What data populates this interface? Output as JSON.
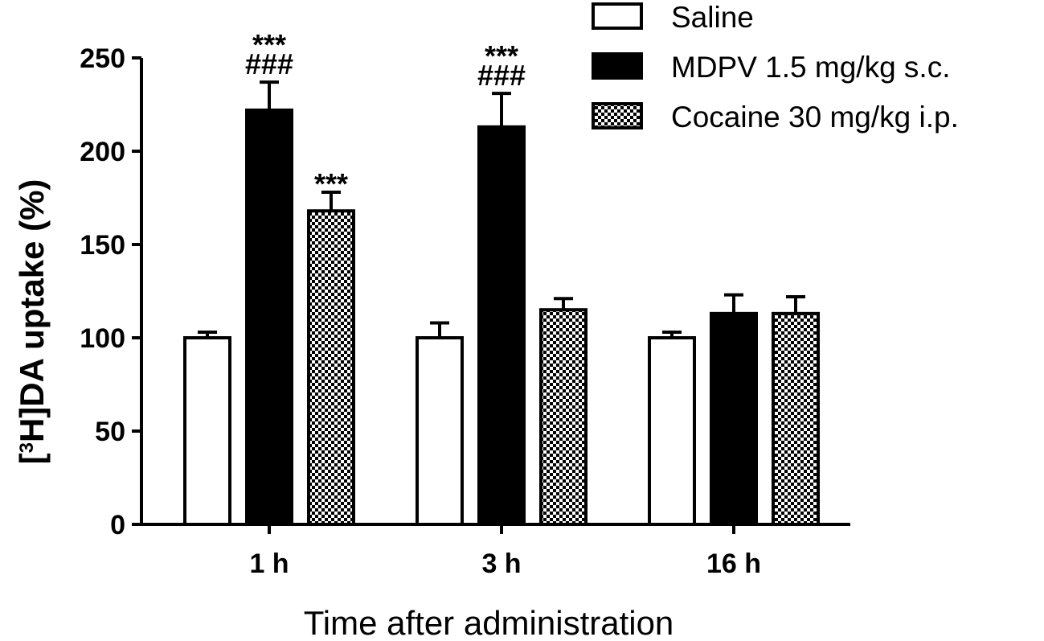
{
  "chart_data": {
    "type": "bar",
    "categories": [
      "1 h",
      "3 h",
      "16 h"
    ],
    "ylabel_prefix": "[",
    "ylabel_sup": "3",
    "ylabel_rest": "H]DA uptake (%)",
    "xlabel": "Time after administration",
    "ylim": [
      0,
      250
    ],
    "yticks": [
      0,
      50,
      100,
      150,
      200,
      250
    ],
    "grid": false,
    "legend_position": "top-right",
    "series": [
      {
        "name": "Saline",
        "fill": "white",
        "values": [
          100,
          100,
          100
        ],
        "errors": [
          3,
          8,
          3
        ]
      },
      {
        "name": "MDPV 1.5 mg/kg s.c.",
        "fill": "black",
        "values": [
          222,
          213,
          113
        ],
        "errors": [
          15,
          18,
          10
        ]
      },
      {
        "name": "Cocaine 30 mg/kg i.p.",
        "fill": "checker",
        "values": [
          168,
          115,
          113
        ],
        "errors": [
          10,
          6,
          9
        ]
      }
    ],
    "annotations": [
      {
        "category": 0,
        "series": 1,
        "lines": [
          "***",
          "###"
        ]
      },
      {
        "category": 0,
        "series": 2,
        "lines": [
          "***"
        ]
      },
      {
        "category": 1,
        "series": 1,
        "lines": [
          "***",
          "###"
        ]
      }
    ]
  }
}
